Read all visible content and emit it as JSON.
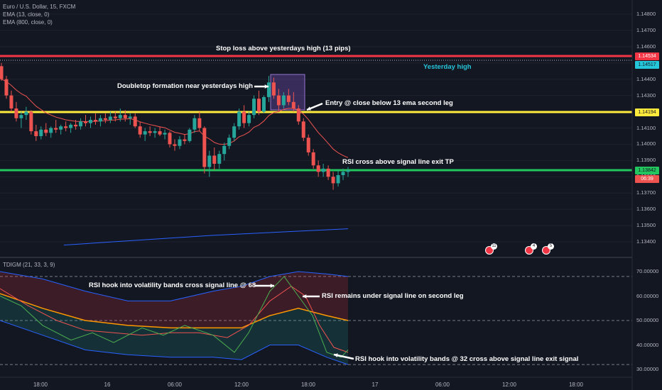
{
  "header": {
    "symbol_line": "Euro / U.S. Dollar, 15, FXCM",
    "ema_fast": "EMA (13, close, 0)",
    "ema_slow": "EMA (800, close, 0)"
  },
  "indicator": {
    "label": "TDIGM (21, 33, 3, 9)"
  },
  "annotations": {
    "stop_loss": "Stop loss above yesterdays high (13 pips)",
    "yesterday_high": "Yesterday high",
    "doubletop": "Doubletop formation near yesterdays high",
    "entry": "Entry @ close below 13 ema second leg",
    "exit_tp": "RSI cross above signal line exit TP",
    "rsi_hook": "RSI hook into volatility bands cross signal line @ 68",
    "rsi_remains": "RSI remains under signal line on second leg",
    "rsi_exit": "RSI hook into volatility bands @ 32 cross above signal line exit signal"
  },
  "price_axis": {
    "ticks": [
      "1.14800",
      "1.14700",
      "1.14600",
      "1.14500",
      "1.14400",
      "1.14300",
      "1.14200",
      "1.14100",
      "1.14000",
      "1.13900",
      "1.13800",
      "1.13700",
      "1.13600",
      "1.13500",
      "1.13400"
    ],
    "label_stop": "1.14534",
    "label_yhigh": "1.14517",
    "label_entry": "1.14194",
    "label_tp": "1.13842",
    "label_countdown": "06:39"
  },
  "indicator_axis": {
    "ticks": [
      "70.00000",
      "60.00000",
      "50.00000",
      "40.00000",
      "30.00000"
    ]
  },
  "time_axis": {
    "ticks": [
      "18:00",
      "16",
      "06:00",
      "12:00",
      "18:00",
      "17",
      "06:00",
      "12:00",
      "18:00"
    ]
  },
  "events": [
    "11",
    "4",
    "5"
  ],
  "colors": {
    "background": "#131722",
    "stop_line": "#f23645",
    "entry_line": "#ffeb3b",
    "tp_line": "#22c55e",
    "yhigh_text": "#26c6da",
    "bull": "#26a69a",
    "bear": "#ef5350"
  },
  "chart_data": {
    "type": "candlestick",
    "price_levels": {
      "stop_loss": 1.14534,
      "yesterday_high": 1.14517,
      "entry": 1.14194,
      "take_profit": 1.13842
    },
    "candles_ohlc": [
      [
        1.1448,
        1.145,
        1.1439,
        1.144
      ],
      [
        1.144,
        1.1442,
        1.1428,
        1.143
      ],
      [
        1.143,
        1.1433,
        1.142,
        1.1422
      ],
      [
        1.1422,
        1.1426,
        1.1414,
        1.1416
      ],
      [
        1.1416,
        1.142,
        1.141,
        1.1418
      ],
      [
        1.1418,
        1.1423,
        1.1415,
        1.142
      ],
      [
        1.142,
        1.1421,
        1.1406,
        1.1408
      ],
      [
        1.1408,
        1.1412,
        1.1402,
        1.1405
      ],
      [
        1.1405,
        1.1411,
        1.1403,
        1.1409
      ],
      [
        1.1409,
        1.1413,
        1.1405,
        1.1407
      ],
      [
        1.1407,
        1.1411,
        1.1404,
        1.141
      ],
      [
        1.141,
        1.1415,
        1.1407,
        1.1409
      ],
      [
        1.1409,
        1.1412,
        1.1406,
        1.1411
      ],
      [
        1.1411,
        1.1414,
        1.1408,
        1.141
      ],
      [
        1.141,
        1.1413,
        1.1407,
        1.1412
      ],
      [
        1.1412,
        1.1415,
        1.1409,
        1.1411
      ],
      [
        1.1411,
        1.1416,
        1.1409,
        1.1414
      ],
      [
        1.1414,
        1.1418,
        1.1411,
        1.1413
      ],
      [
        1.1413,
        1.1417,
        1.141,
        1.1415
      ],
      [
        1.1415,
        1.1419,
        1.1412,
        1.1414
      ],
      [
        1.1414,
        1.1418,
        1.1411,
        1.1416
      ],
      [
        1.1416,
        1.1419,
        1.1413,
        1.1415
      ],
      [
        1.1415,
        1.142,
        1.1413,
        1.1417
      ],
      [
        1.1417,
        1.142,
        1.1414,
        1.1416
      ],
      [
        1.1416,
        1.1422,
        1.1414,
        1.1418
      ],
      [
        1.1418,
        1.1421,
        1.1414,
        1.1416
      ],
      [
        1.1416,
        1.1419,
        1.1412,
        1.1417
      ],
      [
        1.1417,
        1.1419,
        1.141,
        1.1411
      ],
      [
        1.1411,
        1.1414,
        1.1404,
        1.1406
      ],
      [
        1.1406,
        1.141,
        1.1402,
        1.1408
      ],
      [
        1.1408,
        1.1411,
        1.1405,
        1.1407
      ],
      [
        1.1407,
        1.141,
        1.1404,
        1.1408
      ],
      [
        1.1408,
        1.1411,
        1.1405,
        1.1406
      ],
      [
        1.1406,
        1.1409,
        1.1403,
        1.1407
      ],
      [
        1.1407,
        1.1408,
        1.1398,
        1.14
      ],
      [
        1.14,
        1.1403,
        1.1396,
        1.1399
      ],
      [
        1.1399,
        1.1405,
        1.1397,
        1.1403
      ],
      [
        1.1403,
        1.1406,
        1.14,
        1.1402
      ],
      [
        1.1402,
        1.141,
        1.1401,
        1.1409
      ],
      [
        1.1409,
        1.1418,
        1.1407,
        1.1416
      ],
      [
        1.1416,
        1.142,
        1.1408,
        1.141
      ],
      [
        1.141,
        1.1411,
        1.1382,
        1.1386
      ],
      [
        1.1386,
        1.1396,
        1.138,
        1.1393
      ],
      [
        1.1393,
        1.1398,
        1.1384,
        1.1388
      ],
      [
        1.1388,
        1.1396,
        1.1385,
        1.1394
      ],
      [
        1.1394,
        1.1401,
        1.139,
        1.1399
      ],
      [
        1.1399,
        1.1406,
        1.1397,
        1.1404
      ],
      [
        1.1404,
        1.1413,
        1.1402,
        1.1411
      ],
      [
        1.1411,
        1.1422,
        1.1409,
        1.142
      ],
      [
        1.142,
        1.1424,
        1.141,
        1.1413
      ],
      [
        1.1413,
        1.142,
        1.1411,
        1.1418
      ],
      [
        1.1418,
        1.143,
        1.1416,
        1.1428
      ],
      [
        1.1428,
        1.1433,
        1.1418,
        1.142
      ],
      [
        1.142,
        1.143,
        1.1419,
        1.1429
      ],
      [
        1.1429,
        1.1442,
        1.1426,
        1.1438
      ],
      [
        1.1438,
        1.1441,
        1.1428,
        1.143
      ],
      [
        1.143,
        1.1434,
        1.142,
        1.1424
      ],
      [
        1.1424,
        1.1432,
        1.1422,
        1.143
      ],
      [
        1.143,
        1.1434,
        1.1424,
        1.1426
      ],
      [
        1.1426,
        1.1432,
        1.142,
        1.1422
      ],
      [
        1.1422,
        1.1424,
        1.1412,
        1.1414
      ],
      [
        1.1414,
        1.1416,
        1.1402,
        1.1404
      ],
      [
        1.1404,
        1.1406,
        1.1393,
        1.1395
      ],
      [
        1.1395,
        1.1397,
        1.1385,
        1.1387
      ],
      [
        1.1387,
        1.139,
        1.138,
        1.1383
      ],
      [
        1.1383,
        1.1388,
        1.138,
        1.1385
      ],
      [
        1.1385,
        1.1387,
        1.1378,
        1.138
      ],
      [
        1.138,
        1.1383,
        1.1372,
        1.1376
      ],
      [
        1.1376,
        1.1384,
        1.1374,
        1.1381
      ],
      [
        1.1381,
        1.1385,
        1.1378,
        1.1383
      ],
      [
        1.1383,
        1.1386,
        1.138,
        1.1384
      ]
    ],
    "ema800_start_end": [
      1.1338,
      1.1348
    ]
  }
}
